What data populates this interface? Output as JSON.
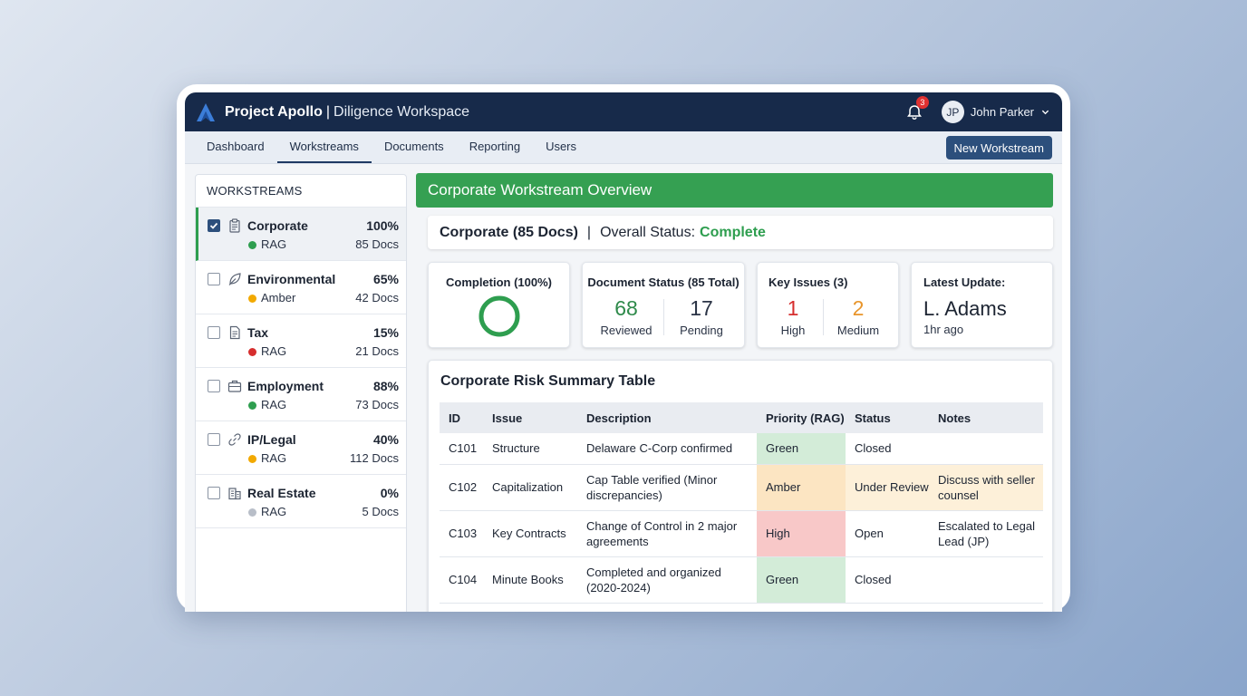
{
  "app": {
    "title": "Project Apollo",
    "separator": "|",
    "subtitle": "Diligence Workspace",
    "notification_count": "3",
    "user_initials": "JP",
    "user_name": "John Parker"
  },
  "tabs": [
    {
      "label": "Dashboard"
    },
    {
      "label": "Workstreams"
    },
    {
      "label": "Documents"
    },
    {
      "label": "Reporting"
    },
    {
      "label": "Users"
    }
  ],
  "active_tab": "Workstreams",
  "new_workstream_label": "New Workstream",
  "sidebar": {
    "heading": "WORKSTREAMS",
    "items": [
      {
        "name": "Corporate",
        "percent": "100%",
        "rag": "RAG",
        "docs": "85 Docs",
        "dot_color": "#2e9e4f",
        "icon": "clipboard-icon",
        "checked": true
      },
      {
        "name": "Environmental",
        "percent": "65%",
        "rag": "Amber",
        "docs": "42 Docs",
        "dot_color": "#f2a900",
        "icon": "leaf-icon",
        "checked": false
      },
      {
        "name": "Tax",
        "percent": "15%",
        "rag": "RAG",
        "docs": "21 Docs",
        "dot_color": "#d62e2e",
        "icon": "document-icon",
        "checked": false
      },
      {
        "name": "Employment",
        "percent": "88%",
        "rag": "RAG",
        "docs": "73 Docs",
        "dot_color": "#2e9e4f",
        "icon": "briefcase-icon",
        "checked": false
      },
      {
        "name": "IP/Legal",
        "percent": "40%",
        "rag": "RAG",
        "docs": "112 Docs",
        "dot_color": "#f2a900",
        "icon": "link-icon",
        "checked": false
      },
      {
        "name": "Real Estate",
        "percent": "0%",
        "rag": "RAG",
        "docs": "5 Docs",
        "dot_color": "#b8bec8",
        "icon": "building-icon",
        "checked": false
      }
    ]
  },
  "main": {
    "header": "Corporate Workstream Overview",
    "status_title": "Corporate (85 Docs)",
    "status_pipe": "|",
    "status_label": "Overall Status:",
    "status_value": "Complete",
    "status_color": "#2e9e4f",
    "cards": {
      "completion": {
        "title": "Completion (100%)",
        "value": 1.0,
        "color": "#2e9e4f"
      },
      "doc_status": {
        "title": "Document Status (85 Total)",
        "reviewed_num": "68",
        "reviewed_label": "Reviewed",
        "pending_num": "17",
        "pending_label": "Pending"
      },
      "key_issues": {
        "title": "Key Issues (3)",
        "high_num": "1",
        "high_label": "High",
        "medium_num": "2",
        "medium_label": "Medium",
        "high_color": "#d62e2e",
        "medium_color": "#e8952b"
      },
      "latest": {
        "title": "Latest Update:",
        "name": "L. Adams",
        "ago": "1hr ago"
      }
    },
    "table": {
      "title": "Corporate Risk Summary Table",
      "headers": [
        "ID",
        "Issue",
        "Description",
        "Priority (RAG)",
        "Status",
        "Notes"
      ],
      "rows": [
        {
          "id": "C101",
          "issue": "Structure",
          "description": "Delaware C-Corp confirmed",
          "priority": "Green",
          "status": "Closed",
          "notes": ""
        },
        {
          "id": "C102",
          "issue": "Capitalization",
          "description": "Cap Table verified (Minor discrepancies)",
          "priority": "Amber",
          "status": "Under Review",
          "notes": "Discuss with seller counsel"
        },
        {
          "id": "C103",
          "issue": "Key Contracts",
          "description": "Change of Control in 2 major agreements",
          "priority": "High",
          "status": "Open",
          "notes": "Escalated to Legal Lead (JP)"
        },
        {
          "id": "C104",
          "issue": "Minute Books",
          "description": "Completed and organized (2020-2024)",
          "priority": "Green",
          "status": "Closed",
          "notes": ""
        }
      ]
    }
  }
}
